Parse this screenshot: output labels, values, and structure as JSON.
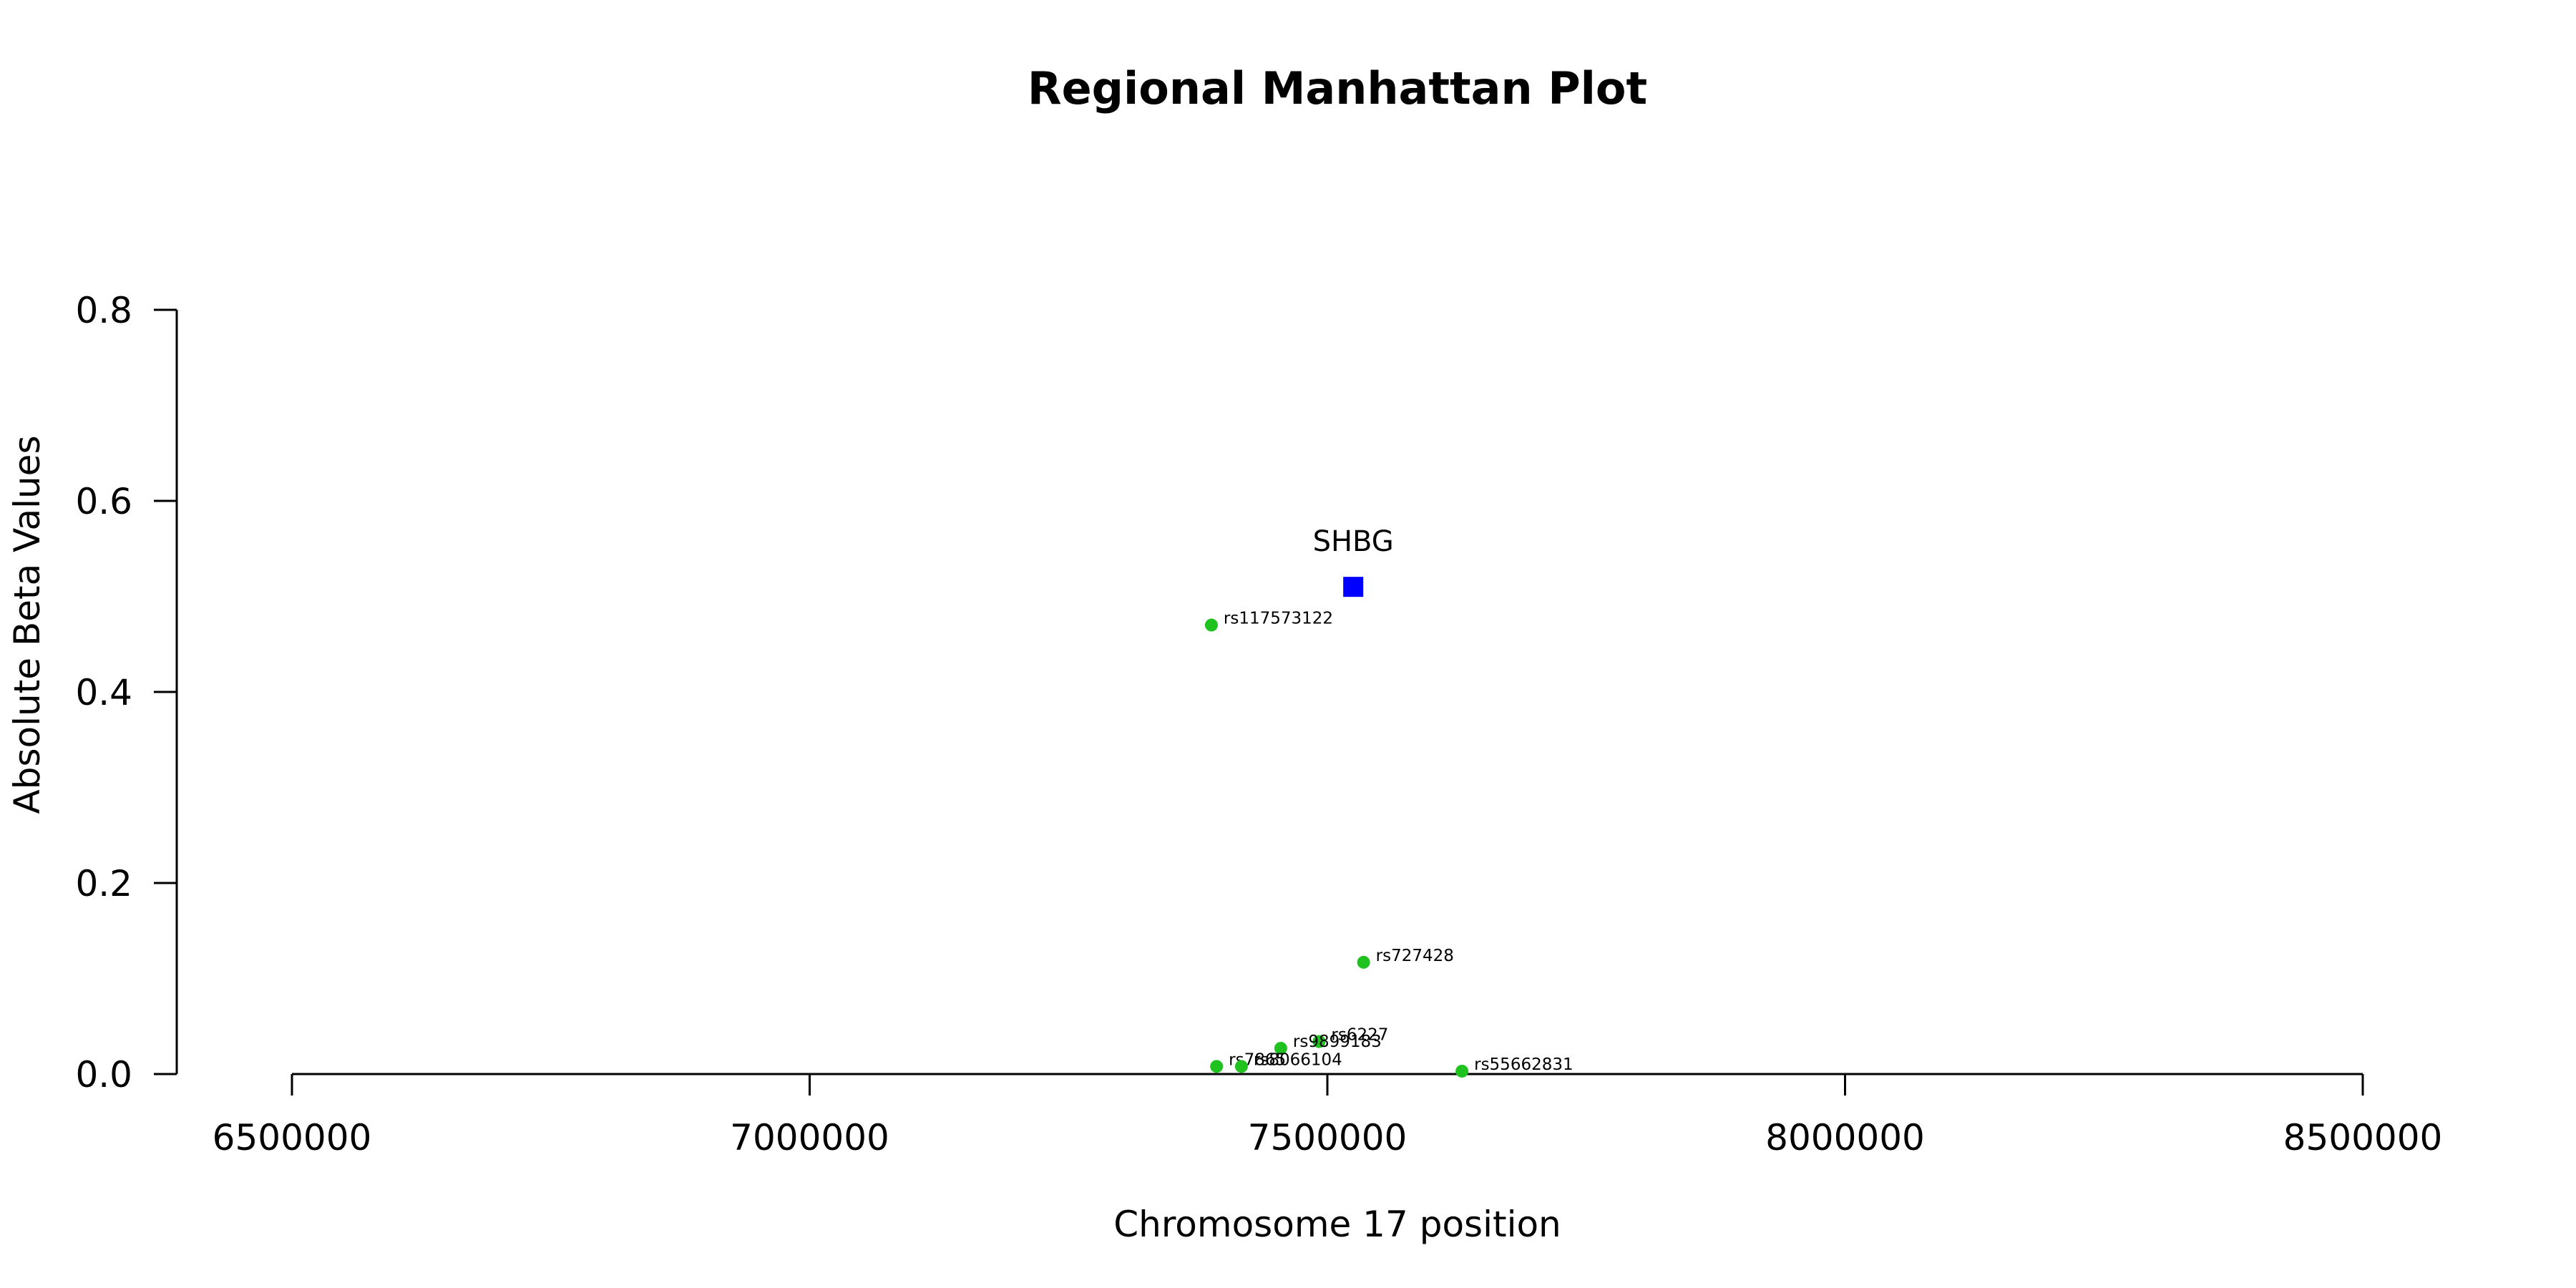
{
  "chart_data": {
    "type": "scatter",
    "title": "Regional Manhattan Plot",
    "xlabel": "Chromosome 17 position",
    "ylabel": "Absolute Beta Values",
    "xlim": [
      6500000,
      8500000
    ],
    "ylim": [
      0,
      0.8
    ],
    "x_ticks": [
      6500000,
      7000000,
      7500000,
      8000000,
      8500000
    ],
    "y_ticks": [
      0.0,
      0.2,
      0.4,
      0.6,
      0.8
    ],
    "x_tick_labels": [
      "6500000",
      "7000000",
      "7500000",
      "8000000",
      "8500000"
    ],
    "y_tick_labels": [
      "0.0",
      "0.2",
      "0.4",
      "0.6",
      "0.8"
    ],
    "grid": false,
    "legend": "none",
    "gene": {
      "name": "SHBG",
      "x": 7525000,
      "y": 0.51,
      "color": "#0000ff"
    },
    "snp_color": "#1fc21f",
    "snps": [
      {
        "label": "rs117573122",
        "x": 7388000,
        "y": 0.47
      },
      {
        "label": "rs727428",
        "x": 7535000,
        "y": 0.117
      },
      {
        "label": "rs6227",
        "x": 7492000,
        "y": 0.034
      },
      {
        "label": "rs9899183",
        "x": 7455000,
        "y": 0.027
      },
      {
        "label": "rs7865",
        "x": 7393000,
        "y": 0.008
      },
      {
        "label": "rs8066104",
        "x": 7417000,
        "y": 0.008
      },
      {
        "label": "rs55662831",
        "x": 7630000,
        "y": 0.003
      }
    ]
  }
}
